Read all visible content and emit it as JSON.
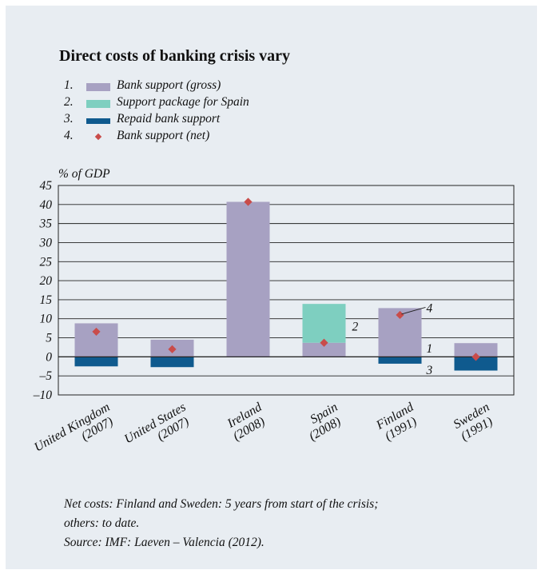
{
  "title": "Direct costs of banking crisis vary",
  "legend": [
    {
      "num": "1.",
      "label": "Bank support (gross)",
      "swatch": "gross"
    },
    {
      "num": "2.",
      "label": "Support package for Spain",
      "swatch": "spain"
    },
    {
      "num": "3.",
      "label": "Repaid bank support",
      "swatch": "repaid"
    },
    {
      "num": "4.",
      "label": "Bank support (net)",
      "swatch": "net"
    }
  ],
  "footnote": {
    "line1": "Net costs: Finland and Sweden: 5 years from start of the crisis;",
    "line2": "others: to date.",
    "line3": "Source: IMF: Laeven – Valencia (2012)."
  },
  "colors": {
    "gross": "#a7a1c2",
    "spain": "#7ecfc0",
    "repaid": "#0f5a8e",
    "net": "#c94c4a",
    "panel": "#e8edf2"
  },
  "chart_data": {
    "type": "bar",
    "ylabel": "% of GDP",
    "ylim": [
      -10,
      45
    ],
    "yticks": [
      45,
      40,
      35,
      30,
      25,
      20,
      15,
      10,
      5,
      0,
      -5,
      -10
    ],
    "ytick_labels": [
      "45",
      "40",
      "35",
      "30",
      "25",
      "20",
      "15",
      "10",
      "5",
      "0",
      "–5",
      "–10"
    ],
    "grid": true,
    "categories": [
      {
        "name": "United Kingdom",
        "year": "(2007)"
      },
      {
        "name": "United States",
        "year": "(2007)"
      },
      {
        "name": "Ireland",
        "year": "(2008)"
      },
      {
        "name": "Spain",
        "year": "(2008)"
      },
      {
        "name": "Finland",
        "year": "(1991)"
      },
      {
        "name": "Sweden",
        "year": "(1991)"
      }
    ],
    "series": [
      {
        "name": "Bank support (gross)",
        "key": "gross",
        "values": [
          8.8,
          4.5,
          40.7,
          3.7,
          12.8,
          3.6
        ]
      },
      {
        "name": "Support package for Spain",
        "key": "spain",
        "values": [
          0,
          0,
          0,
          10.2,
          0,
          0
        ]
      },
      {
        "name": "Repaid bank support",
        "key": "repaid",
        "values": [
          -2.5,
          -2.7,
          0,
          0,
          -1.8,
          -3.6
        ]
      },
      {
        "name": "Bank support (net)",
        "key": "net",
        "values": [
          6.6,
          2.0,
          40.7,
          3.7,
          11.0,
          0.0
        ]
      }
    ],
    "annotations": [
      {
        "text": "2",
        "category": 3,
        "y": 8.0
      },
      {
        "text": "4",
        "category": 4,
        "y": 12.8
      },
      {
        "text": "1",
        "category": 4,
        "y": 2.2
      },
      {
        "text": "3",
        "category": 4,
        "y": -3.5
      }
    ]
  }
}
